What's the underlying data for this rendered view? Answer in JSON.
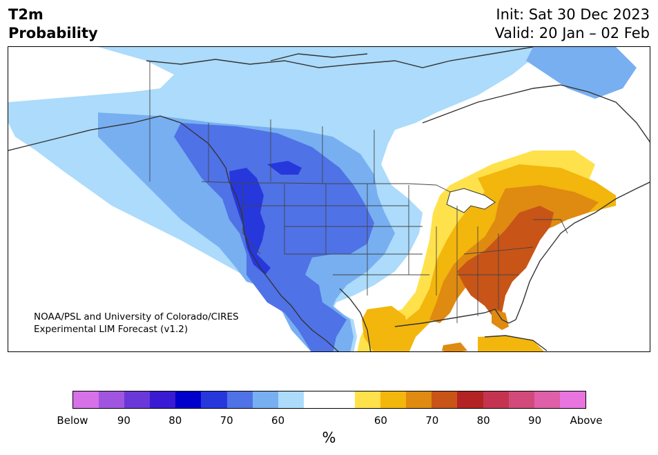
{
  "title": {
    "line1": "T2m",
    "line2": "Probability",
    "init": "Init: Sat 30 Dec 2023",
    "valid": "Valid: 20 Jan – 02 Feb"
  },
  "credit": {
    "line1": "NOAA/PSL and University of Colorado/CIRES",
    "line2": "Experimental LIM Forecast (v1.2)"
  },
  "colorbar": {
    "unit": "%",
    "colors": [
      "#d671e8",
      "#a055e0",
      "#6a38d8",
      "#3a1ad2",
      "#0000cc",
      "#2638dc",
      "#4f72e6",
      "#77aff1",
      "#acdbfb",
      "#ffffff",
      "#ffffff",
      "#ffe14b",
      "#f2b60c",
      "#df8a10",
      "#c85418",
      "#b42323",
      "#c43450",
      "#d24a7a",
      "#df5fa8",
      "#e874df"
    ],
    "tick_labels": [
      "Below",
      "90",
      "80",
      "70",
      "60",
      "60",
      "70",
      "80",
      "90",
      "Above"
    ]
  },
  "map": {
    "categories": {
      "below_60": "#acdbfb",
      "below_65": "#77aff1",
      "below_70": "#4f72e6",
      "below_75": "#2638dc",
      "neutral": "#ffffff",
      "above_60": "#ffe14b",
      "above_65": "#f2b60c",
      "above_70": "#df8a10",
      "above_75": "#c85418"
    }
  }
}
